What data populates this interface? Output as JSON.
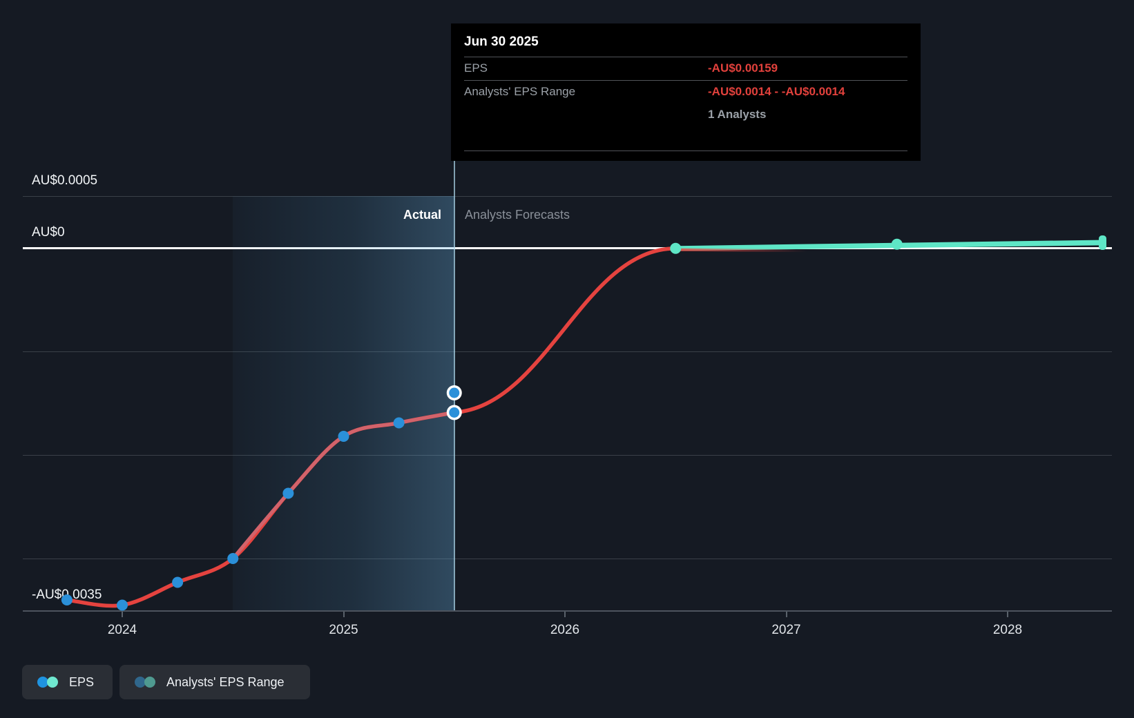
{
  "tooltip": {
    "date": "Jun 30 2025",
    "rows": [
      {
        "label": "EPS",
        "value": "-AU$0.00159"
      },
      {
        "label": "Analysts' EPS Range",
        "value": "-AU$0.0014 - -AU$0.0014"
      }
    ],
    "analysts_note": "1 Analysts"
  },
  "phase_labels": {
    "actual": "Actual",
    "forecast": "Analysts Forecasts"
  },
  "legend": [
    {
      "label": "EPS",
      "dot_colors": [
        "#1f93e0",
        "#6fe8cf"
      ]
    },
    {
      "label": "Analysts' EPS Range",
      "dot_colors": [
        "#30678c",
        "#4f9a90"
      ]
    }
  ],
  "colors": {
    "background": "#151a23",
    "eps_actual_line": "#e5433f",
    "eps_recent_segment": "#d2636b",
    "actual_marker": "#2b90d9",
    "forecast_teal": "#5ee6c6",
    "negative_value_text": "#e2413c",
    "zero_line": "#ffffff",
    "gridline": "#3a4048"
  },
  "chart_data": {
    "type": "line",
    "title": "",
    "xlabel": "",
    "ylabel": "",
    "xlim": [
      2023.68,
      2028.47
    ],
    "ylim": [
      -0.0035,
      0.0005
    ],
    "grid": true,
    "currency": "AU$",
    "x_ticks": [
      {
        "label": "2024",
        "year": 2024
      },
      {
        "label": "2025",
        "year": 2025
      },
      {
        "label": "2026",
        "year": 2026
      },
      {
        "label": "2027",
        "year": 2027
      },
      {
        "label": "2028",
        "year": 2028
      }
    ],
    "y_ticks": [
      {
        "label": "AU$0.0005",
        "value": 0.0005
      },
      {
        "label": "AU$0",
        "value": 0
      },
      {
        "label": "-AU$0.0035",
        "value": -0.0035
      }
    ],
    "gridline_values": [
      0.0005,
      -0.001,
      -0.002,
      -0.003
    ],
    "zero_value": 0,
    "axis_bottom_value": -0.0035,
    "actual_window_years": [
      2024.5,
      2025.5
    ],
    "hover_year": 2025.5,
    "series": [
      {
        "name": "EPS (actual)",
        "points": [
          [
            2023.75,
            -0.0034
          ],
          [
            2024.0,
            -0.00345
          ],
          [
            2024.25,
            -0.00323
          ],
          [
            2024.5,
            -0.003
          ],
          [
            2024.75,
            -0.00237
          ],
          [
            2025.0,
            -0.00182
          ],
          [
            2025.25,
            -0.00169
          ],
          [
            2025.5,
            -0.00159
          ]
        ],
        "recent_segment_start_index": 3
      },
      {
        "name": "EPS (analysts forecast)",
        "points": [
          [
            2025.5,
            -0.00159
          ],
          [
            2026.5,
            -5e-06
          ],
          [
            2027.5,
            3.5e-05
          ],
          [
            2028.44,
            5e-05
          ]
        ]
      },
      {
        "name": "Analysts' EPS Range (hover point)",
        "points": [
          [
            2025.5,
            -0.0014
          ]
        ]
      }
    ]
  }
}
